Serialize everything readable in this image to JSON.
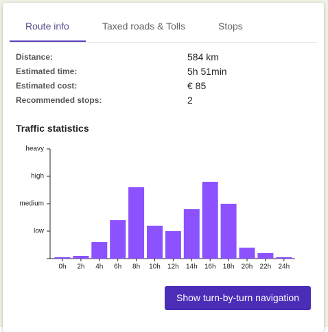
{
  "tabs": [
    "Route info",
    "Taxed roads & Tolls",
    "Stops"
  ],
  "info": {
    "rows": [
      [
        "Distance:",
        "584 km"
      ],
      [
        "Estimated time:",
        "5h 51min"
      ],
      [
        "Estimated cost:",
        "€ 85"
      ],
      [
        "Recommended stops:",
        "2"
      ]
    ]
  },
  "chart_data": {
    "type": "bar",
    "title": "Traffic statistics",
    "categories": [
      "0h",
      "2h",
      "4h",
      "6h",
      "8h",
      "10h",
      "12h",
      "14h",
      "16h",
      "18h",
      "20h",
      "22h",
      "24h"
    ],
    "values": [
      0.05,
      0.1,
      0.6,
      1.4,
      2.6,
      1.2,
      1.0,
      1.8,
      2.8,
      2.0,
      0.4,
      0.2,
      0.05
    ],
    "color": "#8c52ff",
    "ylim": [
      0,
      4
    ],
    "yticks": [
      {
        "value": 1,
        "label": "low"
      },
      {
        "value": 2,
        "label": "medium"
      },
      {
        "value": 3,
        "label": "high"
      },
      {
        "value": 4,
        "label": "heavy"
      }
    ]
  },
  "button": "Show turn-by-turn navigation"
}
